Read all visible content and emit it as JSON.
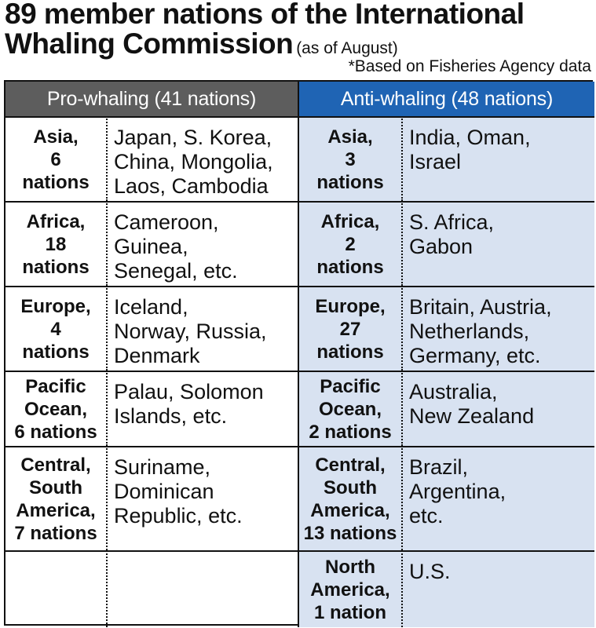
{
  "title": {
    "line1": "89 member nations of the International",
    "line2": "Whaling Commission",
    "note": "(as of August)"
  },
  "source": "*Based on Fisheries Agency data",
  "table": {
    "pro_header": "Pro-whaling (41 nations)",
    "anti_header": "Anti-whaling (48 nations)",
    "rows": [
      {
        "pro_region": "Asia,\n6\nnations",
        "pro_list": "Japan, S. Korea,\nChina, Mongolia,\nLaos, Cambodia",
        "anti_region": "Asia,\n3\nnations",
        "anti_list": "India, Oman,\nIsrael"
      },
      {
        "pro_region": "Africa,\n18\nnations",
        "pro_list": "Cameroon,\nGuinea,\nSenegal, etc.",
        "anti_region": "Africa,\n2\nnations",
        "anti_list": "S. Africa,\nGabon"
      },
      {
        "pro_region": "Europe,\n4\nnations",
        "pro_list": "Iceland,\nNorway, Russia,\nDenmark",
        "anti_region": "Europe,\n27\nnations",
        "anti_list": "Britain, Austria,\nNetherlands,\nGermany, etc."
      },
      {
        "pro_region": "Pacific\nOcean,\n6 nations",
        "pro_list": "Palau, Solomon\nIslands, etc.",
        "anti_region": "Pacific\nOcean,\n2 nations",
        "anti_list": "Australia,\nNew Zealand"
      },
      {
        "pro_region": "Central,\nSouth\nAmerica,\n7 nations",
        "pro_list": "Suriname,\nDominican\nRepublic, etc.",
        "anti_region": "Central,\nSouth\nAmerica,\n13 nations",
        "anti_list": "Brazil,\nArgentina,\netc."
      },
      {
        "pro_region": "",
        "pro_list": "",
        "anti_region": "North\nAmerica,\n1 nation",
        "anti_list": "U.S."
      }
    ]
  },
  "colors": {
    "pro_header_bg": "#5d5d5d",
    "anti_header_bg": "#1f64b4",
    "anti_cell_bg": "#d8e2f1"
  }
}
